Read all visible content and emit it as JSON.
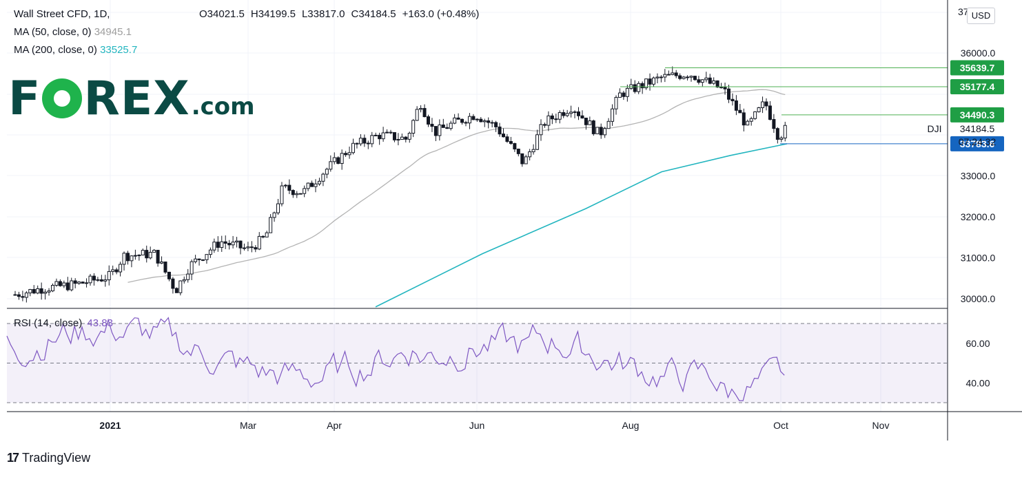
{
  "header": {
    "symbol": "Wall Street CFD, 1D,",
    "ohlc": {
      "open": "O34021.5",
      "high": "H34199.5",
      "low": "L33817.0",
      "close": "C34184.5",
      "change": "+163.0 (+0.48%)"
    },
    "ma50_label": "MA (50, close, 0)",
    "ma50_value": "34945.1",
    "ma200_label": "MA (200, close, 0)",
    "ma200_value": "33525.7"
  },
  "currency": "USD",
  "branding": {
    "forex_logo_left": "F",
    "forex_logo_right": "REX",
    "forex_logo_suffix": ".com",
    "tradingview": "TradingView"
  },
  "colors": {
    "up": "#131722",
    "down": "#131722",
    "ma50": "#b3b3b3",
    "ma200": "#22b5bf",
    "rsi": "#7e57c2",
    "level_line": "#4caf50",
    "level_box": "#1f9e45",
    "current_box": "#1565c0"
  },
  "chart_data": [
    {
      "type": "candlestick",
      "title": "Wall Street CFD, 1D",
      "ylim": [
        29800,
        37000
      ],
      "y_ticks": [
        "30000.0",
        "31000.0",
        "32000.0",
        "33000.0",
        "36000.0"
      ],
      "x_ticks": [
        "2021",
        "Mar",
        "Apr",
        "Jun",
        "Aug",
        "Oct",
        "Nov"
      ],
      "last_price": "34184.5",
      "countdown": "07:24:32",
      "series_label": "DJI",
      "levels": [
        "35639.7",
        "35177.4",
        "34490.3",
        "33783.6"
      ],
      "approx_close_path": [
        [
          "Dec 2020",
          30100
        ],
        [
          "2021",
          30800
        ],
        [
          "Feb 2021",
          31300
        ],
        [
          "Mar 2021",
          31500
        ],
        [
          "Apr 2021",
          33300
        ],
        [
          "May 2021",
          34500
        ],
        [
          "Jun 2021",
          34600
        ],
        [
          "Jul 2021",
          34500
        ],
        [
          "Aug 2021",
          35300
        ],
        [
          "Sep 2021",
          34800
        ],
        [
          "Oct 2021",
          34184.5
        ]
      ]
    },
    {
      "type": "line",
      "title": "RSI (14, close)",
      "value_label": "43.83",
      "ylim": [
        25,
        80
      ],
      "y_ticks": [
        "40.00",
        "60.00"
      ],
      "bands": [
        30,
        50,
        70
      ]
    }
  ]
}
